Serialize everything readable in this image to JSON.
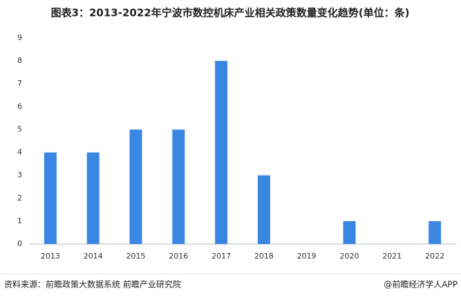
{
  "chart_data": {
    "type": "bar",
    "title": "图表3：2013-2022年宁波市数控机床产业相关政策数量变化趋势(单位：条)",
    "categories": [
      "2013",
      "2014",
      "2015",
      "2016",
      "2017",
      "2018",
      "2019",
      "2020",
      "2021",
      "2022"
    ],
    "values": [
      4,
      4,
      5,
      5,
      8,
      3,
      0,
      1,
      0,
      1
    ],
    "color": "#3a86e3",
    "ylim": [
      0,
      9
    ],
    "yticks": [
      0,
      1,
      2,
      3,
      4,
      5,
      6,
      7,
      8,
      9
    ],
    "grid": false,
    "source": "资料来源：前瞻政策大数据系统 前瞻产业研究院",
    "credit": "@前瞻经济学人APP"
  }
}
